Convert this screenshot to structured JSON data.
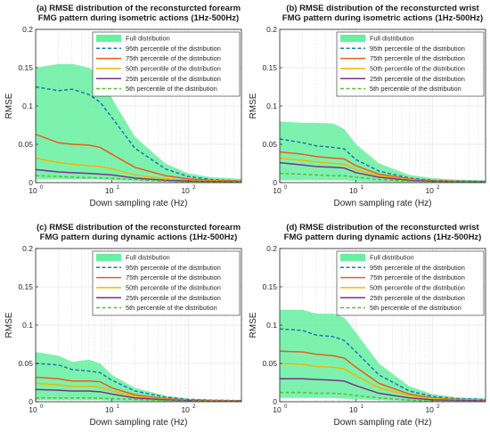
{
  "figure": {
    "colors": {
      "full": "#66f0a0",
      "p95": "#1f77b4",
      "p75": "#f05a1c",
      "p50": "#f5b400",
      "p25": "#7e2f8e",
      "p5": "#5dbb3c"
    }
  },
  "chart_data": [
    {
      "type": "area",
      "title_lines": [
        "(a) RMSE distribution of the reconsturcted forearm",
        "FMG pattern during isometric actions (1Hz-500Hz)"
      ],
      "xlabel": "Down sampling rate (Hz)",
      "ylabel": "RMSE",
      "xscale": "log",
      "xlim": [
        1,
        500
      ],
      "ylim": [
        0,
        0.2
      ],
      "x_ticks": [
        {
          "base": "10",
          "exp": "0"
        },
        {
          "base": "10",
          "exp": "1"
        },
        {
          "base": "10",
          "exp": "2"
        }
      ],
      "y_ticks": [
        "0",
        "0.05",
        "0.1",
        "0.15",
        "0.2"
      ],
      "grid": true,
      "legend_position": "top-right",
      "legend": [
        {
          "key": "full",
          "label": "Full distribution",
          "style": "patch"
        },
        {
          "key": "p95",
          "label": "95th percentile of the distribution",
          "style": "dashed"
        },
        {
          "key": "p75",
          "label": "75th percentile of the distribution",
          "style": "solid"
        },
        {
          "key": "p50",
          "label": "50th percentile of the distribution",
          "style": "solid"
        },
        {
          "key": "p25",
          "label": "25th percentile of the distribution",
          "style": "solid"
        },
        {
          "key": "p5",
          "label": "5th percentile of the distribution",
          "style": "dashed"
        }
      ],
      "x": [
        1,
        2,
        3,
        5,
        7,
        10,
        20,
        50,
        100,
        200,
        500
      ],
      "band_upper": [
        0.15,
        0.155,
        0.155,
        0.15,
        0.14,
        0.11,
        0.06,
        0.025,
        0.012,
        0.007,
        0.005
      ],
      "band_lower": [
        0.004,
        0.004,
        0.004,
        0.004,
        0.004,
        0.003,
        0.002,
        0.001,
        0.0005,
        0.0003,
        0.0002
      ],
      "series": [
        {
          "key": "p95",
          "values": [
            0.125,
            0.12,
            0.122,
            0.115,
            0.105,
            0.085,
            0.045,
            0.018,
            0.008,
            0.004,
            0.002
          ]
        },
        {
          "key": "p75",
          "values": [
            0.063,
            0.052,
            0.05,
            0.049,
            0.046,
            0.037,
            0.02,
            0.009,
            0.005,
            0.003,
            0.002
          ]
        },
        {
          "key": "p50",
          "values": [
            0.032,
            0.026,
            0.024,
            0.022,
            0.021,
            0.018,
            0.01,
            0.005,
            0.003,
            0.002,
            0.0015
          ]
        },
        {
          "key": "p25",
          "values": [
            0.017,
            0.014,
            0.013,
            0.012,
            0.011,
            0.01,
            0.006,
            0.003,
            0.002,
            0.0015,
            0.001
          ]
        },
        {
          "key": "p5",
          "values": [
            0.009,
            0.008,
            0.007,
            0.0065,
            0.006,
            0.0055,
            0.004,
            0.002,
            0.001,
            0.0008,
            0.0005
          ]
        }
      ]
    },
    {
      "type": "area",
      "title_lines": [
        "(b) RMSE distribution of the reconsturcted wrist",
        "FMG pattern during isometric actions (1Hz-500Hz)"
      ],
      "xlabel": "Down sampling rate (Hz)",
      "ylabel": "RMSE",
      "xscale": "log",
      "xlim": [
        1,
        500
      ],
      "ylim": [
        0,
        0.2
      ],
      "x_ticks": [
        {
          "base": "10",
          "exp": "0"
        },
        {
          "base": "10",
          "exp": "1"
        },
        {
          "base": "10",
          "exp": "2"
        }
      ],
      "y_ticks": [
        "0",
        "0.05",
        "0.1",
        "0.15",
        "0.2"
      ],
      "grid": true,
      "legend_position": "top-right",
      "legend": [
        {
          "key": "full",
          "label": "Full distribution",
          "style": "patch"
        },
        {
          "key": "p95",
          "label": "95th percentile of the distribution",
          "style": "dashed"
        },
        {
          "key": "p75",
          "label": "75th percentile of the distribution",
          "style": "solid"
        },
        {
          "key": "p50",
          "label": "50th percentile of the distribution",
          "style": "solid"
        },
        {
          "key": "p25",
          "label": "25th percentile of the distribution",
          "style": "solid"
        },
        {
          "key": "p5",
          "label": "5th percentile of the distribution",
          "style": "dashed"
        }
      ],
      "x": [
        1,
        2,
        3,
        5,
        7,
        10,
        20,
        50,
        100,
        200,
        500
      ],
      "band_upper": [
        0.08,
        0.078,
        0.078,
        0.077,
        0.07,
        0.05,
        0.025,
        0.01,
        0.006,
        0.004,
        0.003
      ],
      "band_lower": [
        0.003,
        0.003,
        0.003,
        0.003,
        0.003,
        0.002,
        0.001,
        0.0005,
        0.0003,
        0.0002,
        0.0001
      ],
      "series": [
        {
          "key": "p95",
          "values": [
            0.057,
            0.052,
            0.048,
            0.046,
            0.044,
            0.03,
            0.015,
            0.006,
            0.003,
            0.002,
            0.0015
          ]
        },
        {
          "key": "p75",
          "values": [
            0.04,
            0.037,
            0.034,
            0.032,
            0.031,
            0.022,
            0.011,
            0.005,
            0.0025,
            0.0018,
            0.0013
          ]
        },
        {
          "key": "p50",
          "values": [
            0.032,
            0.029,
            0.027,
            0.025,
            0.024,
            0.017,
            0.009,
            0.004,
            0.002,
            0.0015,
            0.001
          ]
        },
        {
          "key": "p25",
          "values": [
            0.026,
            0.023,
            0.021,
            0.02,
            0.019,
            0.013,
            0.007,
            0.003,
            0.0018,
            0.0013,
            0.0009
          ]
        },
        {
          "key": "p5",
          "values": [
            0.012,
            0.011,
            0.01,
            0.009,
            0.009,
            0.007,
            0.004,
            0.002,
            0.001,
            0.0008,
            0.0005
          ]
        }
      ]
    },
    {
      "type": "area",
      "title_lines": [
        "(c) RMSE distribution of the reconsturcted forearm",
        "FMG pattern during dynamic actions (1Hz-500Hz)"
      ],
      "xlabel": "Down sampling rate (Hz)",
      "ylabel": "RMSE",
      "xscale": "log",
      "xlim": [
        1,
        500
      ],
      "ylim": [
        0,
        0.2
      ],
      "x_ticks": [
        {
          "base": "10",
          "exp": "0"
        },
        {
          "base": "10",
          "exp": "1"
        },
        {
          "base": "10",
          "exp": "2"
        }
      ],
      "y_ticks": [
        "0",
        "0.05",
        "0.1",
        "0.15",
        "0.2"
      ],
      "grid": true,
      "legend_position": "top-right",
      "legend": [
        {
          "key": "full",
          "label": "Full distribution",
          "style": "patch"
        },
        {
          "key": "p95",
          "label": "95th percentile of the distribution",
          "style": "dashed"
        },
        {
          "key": "p75",
          "label": "75th percentile of the distribution",
          "style": "solid"
        },
        {
          "key": "p50",
          "label": "50th percentile of the distribution",
          "style": "solid"
        },
        {
          "key": "p25",
          "label": "25th percentile of the distribution",
          "style": "solid"
        },
        {
          "key": "p5",
          "label": "5th percentile of the distribution",
          "style": "dashed"
        }
      ],
      "x": [
        1,
        2,
        3,
        5,
        7,
        10,
        20,
        50,
        100,
        200,
        500
      ],
      "band_upper": [
        0.065,
        0.06,
        0.052,
        0.055,
        0.05,
        0.035,
        0.018,
        0.008,
        0.004,
        0.003,
        0.002
      ],
      "band_lower": [
        0.002,
        0.002,
        0.002,
        0.002,
        0.002,
        0.0015,
        0.001,
        0.0005,
        0.0003,
        0.0002,
        0.0001
      ],
      "series": [
        {
          "key": "p95",
          "values": [
            0.05,
            0.048,
            0.042,
            0.04,
            0.038,
            0.028,
            0.014,
            0.006,
            0.003,
            0.002,
            0.0015
          ]
        },
        {
          "key": "p75",
          "values": [
            0.032,
            0.03,
            0.027,
            0.027,
            0.026,
            0.018,
            0.009,
            0.004,
            0.002,
            0.0015,
            0.001
          ]
        },
        {
          "key": "p50",
          "values": [
            0.024,
            0.022,
            0.02,
            0.02,
            0.019,
            0.014,
            0.007,
            0.003,
            0.0018,
            0.0013,
            0.0009
          ]
        },
        {
          "key": "p25",
          "values": [
            0.016,
            0.015,
            0.014,
            0.014,
            0.013,
            0.01,
            0.005,
            0.0025,
            0.0015,
            0.001,
            0.0007
          ]
        },
        {
          "key": "p5",
          "values": [
            0.005,
            0.005,
            0.005,
            0.005,
            0.0045,
            0.004,
            0.003,
            0.0015,
            0.001,
            0.0007,
            0.0005
          ]
        }
      ]
    },
    {
      "type": "area",
      "title_lines": [
        "(d) RMSE distribution of the reconsturcted wrist",
        "FMG pattern during dynamic actions (1Hz-500Hz)"
      ],
      "xlabel": "Down sampling rate (Hz)",
      "ylabel": "RMSE",
      "xscale": "log",
      "xlim": [
        1,
        500
      ],
      "ylim": [
        0,
        0.2
      ],
      "x_ticks": [
        {
          "base": "10",
          "exp": "0"
        },
        {
          "base": "10",
          "exp": "1"
        },
        {
          "base": "10",
          "exp": "2"
        }
      ],
      "y_ticks": [
        "0",
        "0.05",
        "0.1",
        "0.15",
        "0.2"
      ],
      "grid": true,
      "legend_position": "top-right",
      "legend": [
        {
          "key": "full",
          "label": "Full distribution",
          "style": "patch"
        },
        {
          "key": "p95",
          "label": "95th percentile of the distribution",
          "style": "dashed"
        },
        {
          "key": "p75",
          "label": "75th percentile of the distribution",
          "style": "solid"
        },
        {
          "key": "p50",
          "label": "50th percentile of the distribution",
          "style": "solid"
        },
        {
          "key": "p25",
          "label": "25th percentile of the distribution",
          "style": "solid"
        },
        {
          "key": "p5",
          "label": "5th percentile of the distribution",
          "style": "dashed"
        }
      ],
      "x": [
        1,
        2,
        3,
        5,
        7,
        10,
        20,
        50,
        100,
        200,
        500
      ],
      "band_upper": [
        0.12,
        0.12,
        0.115,
        0.115,
        0.11,
        0.09,
        0.05,
        0.02,
        0.01,
        0.006,
        0.004
      ],
      "band_lower": [
        0.005,
        0.005,
        0.005,
        0.005,
        0.004,
        0.003,
        0.002,
        0.001,
        0.0005,
        0.0003,
        0.0002
      ],
      "series": [
        {
          "key": "p95",
          "values": [
            0.095,
            0.093,
            0.087,
            0.085,
            0.08,
            0.065,
            0.035,
            0.014,
            0.007,
            0.004,
            0.003
          ]
        },
        {
          "key": "p75",
          "values": [
            0.066,
            0.065,
            0.062,
            0.06,
            0.057,
            0.045,
            0.024,
            0.01,
            0.005,
            0.003,
            0.002
          ]
        },
        {
          "key": "p50",
          "values": [
            0.05,
            0.049,
            0.046,
            0.045,
            0.043,
            0.034,
            0.018,
            0.008,
            0.004,
            0.0025,
            0.0017
          ]
        },
        {
          "key": "p25",
          "values": [
            0.03,
            0.03,
            0.029,
            0.028,
            0.027,
            0.021,
            0.011,
            0.005,
            0.0025,
            0.0018,
            0.0012
          ]
        },
        {
          "key": "p5",
          "values": [
            0.012,
            0.012,
            0.011,
            0.011,
            0.01,
            0.008,
            0.005,
            0.002,
            0.001,
            0.0008,
            0.0005
          ]
        }
      ]
    }
  ]
}
